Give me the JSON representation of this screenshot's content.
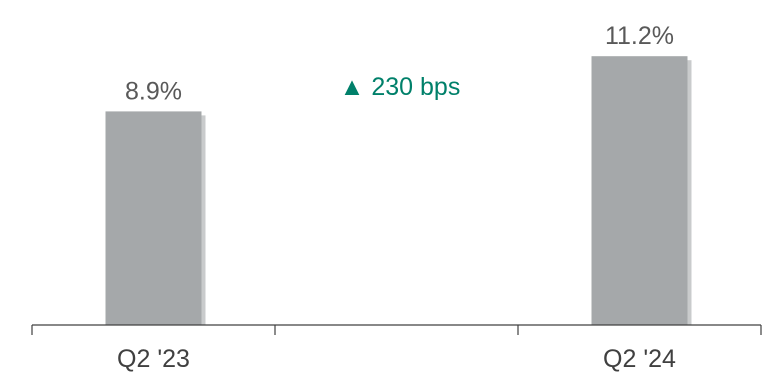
{
  "chart_data": {
    "type": "bar",
    "categories": [
      "Q2 '23",
      "",
      "Q2 '24"
    ],
    "values": [
      8.9,
      null,
      11.2
    ],
    "data_labels": [
      "8.9%",
      "",
      "11.2%"
    ],
    "ylim": [
      0,
      12.8
    ],
    "grid": false,
    "annotation": {
      "text": "▲ 230 bps"
    }
  },
  "colors": {
    "bar": "#a5a8aa",
    "bar_shadow": "#c9cbcc",
    "axis": "#404040",
    "category_text": "#404040",
    "value_text": "#595959",
    "annotation": "#00806a"
  }
}
